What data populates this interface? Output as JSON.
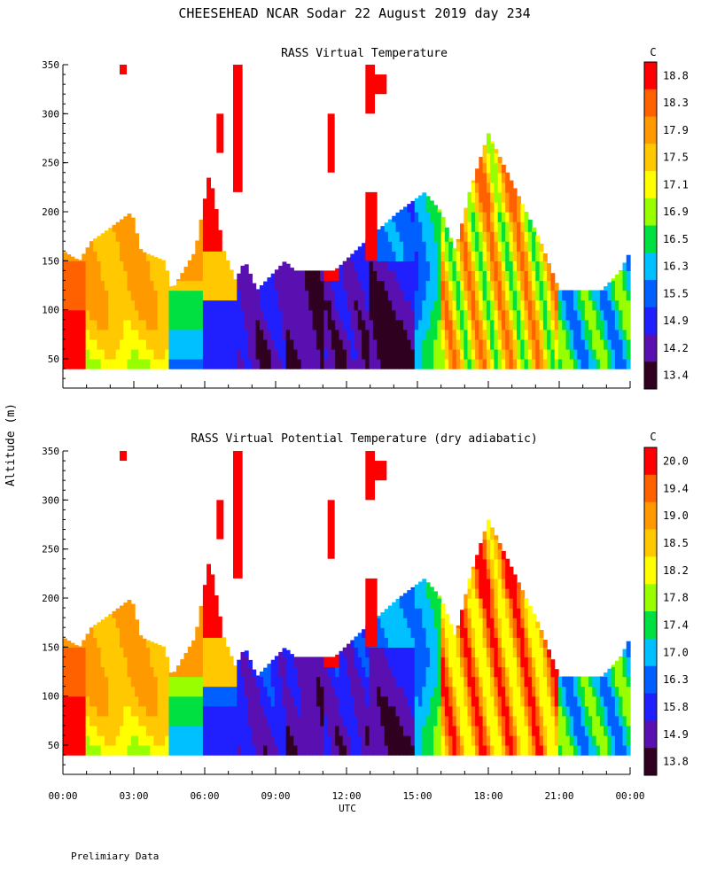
{
  "figure": {
    "title": "CHEESEHEAD  NCAR Sodar  22 August 2019  day 234",
    "shared_ylabel": "Altitude (m)",
    "shared_xlabel": "UTC",
    "footnote": "Prelimiary Data"
  },
  "chart_data": [
    {
      "type": "heatmap",
      "title": "RASS Virtual Temperature",
      "xlabel": "UTC",
      "ylabel": "Altitude (m)",
      "x_ticks": [
        "00:00",
        "03:00",
        "06:00",
        "09:00",
        "12:00",
        "15:00",
        "18:00",
        "21:00",
        "00:00"
      ],
      "x_range_hours": [
        0,
        24
      ],
      "y_ticks": [
        50,
        100,
        150,
        200,
        250,
        300,
        350
      ],
      "ylim": [
        20,
        350
      ],
      "colorbar": {
        "unit": "C",
        "labels": [
          "18.8",
          "18.3",
          "17.9",
          "17.5",
          "17.1",
          "16.9",
          "16.5",
          "16.3",
          "15.5",
          "14.9",
          "14.2",
          "13.4"
        ],
        "colors": [
          "#ff0000",
          "#ff6000",
          "#ff9900",
          "#ffc800",
          "#ffff00",
          "#99ff00",
          "#00e040",
          "#00c0ff",
          "#0060ff",
          "#2020ff",
          "#5a10b0",
          "#300020"
        ]
      },
      "profile_tops_m": [
        {
          "t": 0.0,
          "top": 160
        },
        {
          "t": 0.7,
          "top": 150
        },
        {
          "t": 1.2,
          "top": 170
        },
        {
          "t": 1.8,
          "top": 180
        },
        {
          "t": 2.9,
          "top": 200
        },
        {
          "t": 3.3,
          "top": 160
        },
        {
          "t": 4.3,
          "top": 150
        },
        {
          "t": 4.6,
          "top": 120
        },
        {
          "t": 5.6,
          "top": 160
        },
        {
          "t": 6.2,
          "top": 240
        },
        {
          "t": 6.8,
          "top": 160
        },
        {
          "t": 7.3,
          "top": 130
        },
        {
          "t": 7.7,
          "top": 150
        },
        {
          "t": 8.2,
          "top": 120
        },
        {
          "t": 9.4,
          "top": 150
        },
        {
          "t": 9.8,
          "top": 140
        },
        {
          "t": 11.5,
          "top": 140
        },
        {
          "t": 12.8,
          "top": 170
        },
        {
          "t": 14.2,
          "top": 200
        },
        {
          "t": 15.3,
          "top": 220
        },
        {
          "t": 16.0,
          "top": 200
        },
        {
          "t": 16.6,
          "top": 160
        },
        {
          "t": 17.2,
          "top": 220
        },
        {
          "t": 18.0,
          "top": 280
        },
        {
          "t": 19.2,
          "top": 220
        },
        {
          "t": 20.2,
          "top": 170
        },
        {
          "t": 21.0,
          "top": 120
        },
        {
          "t": 22.8,
          "top": 120
        },
        {
          "t": 23.6,
          "top": 140
        },
        {
          "t": 24.0,
          "top": 160
        }
      ],
      "base_m": 40
    },
    {
      "type": "heatmap",
      "title": "RASS Virtual Potential Temperature (dry adiabatic)",
      "xlabel": "UTC",
      "ylabel": "Altitude (m)",
      "x_ticks": [
        "00:00",
        "03:00",
        "06:00",
        "09:00",
        "12:00",
        "15:00",
        "18:00",
        "21:00",
        "00:00"
      ],
      "x_range_hours": [
        0,
        24
      ],
      "y_ticks": [
        50,
        100,
        150,
        200,
        250,
        300,
        350
      ],
      "ylim": [
        20,
        350
      ],
      "colorbar": {
        "unit": "C",
        "labels": [
          "20.0",
          "19.4",
          "19.0",
          "18.5",
          "18.2",
          "17.8",
          "17.4",
          "17.0",
          "16.3",
          "15.8",
          "14.9",
          "13.8"
        ],
        "colors": [
          "#ff0000",
          "#ff6000",
          "#ff9900",
          "#ffc800",
          "#ffff00",
          "#99ff00",
          "#00e040",
          "#00c0ff",
          "#0060ff",
          "#2020ff",
          "#5a10b0",
          "#300020"
        ]
      },
      "profile_tops_m": [
        {
          "t": 0.0,
          "top": 160
        },
        {
          "t": 0.7,
          "top": 150
        },
        {
          "t": 1.2,
          "top": 170
        },
        {
          "t": 1.8,
          "top": 180
        },
        {
          "t": 2.9,
          "top": 200
        },
        {
          "t": 3.3,
          "top": 160
        },
        {
          "t": 4.3,
          "top": 150
        },
        {
          "t": 4.6,
          "top": 120
        },
        {
          "t": 5.6,
          "top": 160
        },
        {
          "t": 6.2,
          "top": 240
        },
        {
          "t": 6.8,
          "top": 160
        },
        {
          "t": 7.3,
          "top": 130
        },
        {
          "t": 7.7,
          "top": 150
        },
        {
          "t": 8.2,
          "top": 120
        },
        {
          "t": 9.4,
          "top": 150
        },
        {
          "t": 9.8,
          "top": 140
        },
        {
          "t": 11.5,
          "top": 140
        },
        {
          "t": 12.8,
          "top": 170
        },
        {
          "t": 14.2,
          "top": 200
        },
        {
          "t": 15.3,
          "top": 220
        },
        {
          "t": 16.0,
          "top": 200
        },
        {
          "t": 16.6,
          "top": 160
        },
        {
          "t": 17.2,
          "top": 220
        },
        {
          "t": 18.0,
          "top": 280
        },
        {
          "t": 19.2,
          "top": 220
        },
        {
          "t": 20.2,
          "top": 170
        },
        {
          "t": 21.0,
          "top": 120
        },
        {
          "t": 22.8,
          "top": 120
        },
        {
          "t": 23.6,
          "top": 140
        },
        {
          "t": 24.0,
          "top": 160
        }
      ],
      "base_m": 40
    }
  ]
}
